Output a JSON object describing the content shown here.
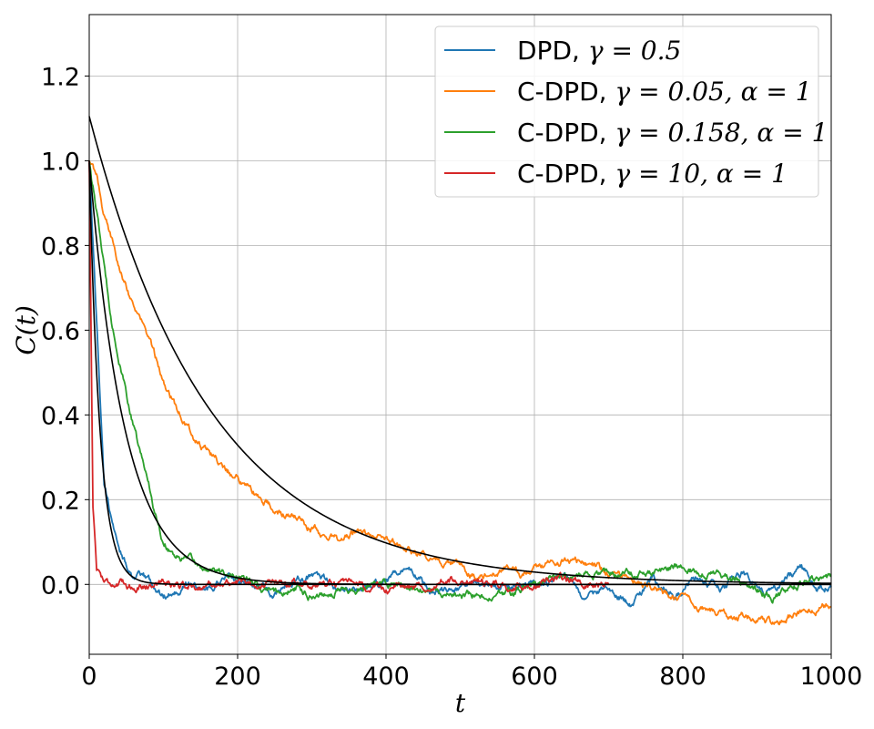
{
  "chart_data": {
    "type": "line",
    "title": "",
    "xlabel": "t",
    "ylabel": "C(t)",
    "xlim": [
      0,
      1000
    ],
    "ylim": [
      -0.165,
      1.345
    ],
    "x_ticks": [
      0,
      200,
      400,
      600,
      800,
      1000
    ],
    "x_tick_labels": [
      "0",
      "200",
      "400",
      "600",
      "800",
      "1000"
    ],
    "y_ticks": [
      0.0,
      0.2,
      0.4,
      0.6,
      0.8,
      1.0,
      1.2
    ],
    "y_tick_labels": [
      "0.0",
      "0.2",
      "0.4",
      "0.6",
      "0.8",
      "1.0",
      "1.2"
    ],
    "grid": true,
    "legend_position": "top-right",
    "series": [
      {
        "name": "DPD, γ = 0.5",
        "legend_prefix": "DPD, ",
        "legend_math": "γ = 0.5",
        "color": "#1f77b4",
        "decay_time": 14,
        "amplitude": 1.0,
        "noise_amplitude": 0.032,
        "seed": 11,
        "x": [
          0,
          20,
          40,
          60,
          80,
          100,
          130,
          160,
          190,
          220,
          250,
          280,
          310,
          340,
          370,
          400,
          430,
          460,
          490,
          520,
          550,
          580,
          610,
          640,
          670,
          700,
          730,
          760,
          790,
          820,
          850,
          880,
          910,
          940,
          960,
          980,
          1000
        ],
        "y": [
          1.0,
          0.24,
          0.07,
          0.02,
          0.01,
          -0.03,
          0.0,
          -0.01,
          0.02,
          0.0,
          -0.02,
          0.01,
          0.02,
          -0.02,
          -0.01,
          0.0,
          0.04,
          -0.01,
          -0.02,
          0.01,
          -0.01,
          0.0,
          -0.01,
          0.03,
          -0.04,
          0.0,
          -0.05,
          0.01,
          -0.03,
          0.02,
          -0.01,
          0.03,
          -0.02,
          0.01,
          0.04,
          -0.01,
          0.0
        ]
      },
      {
        "name": "C-DPD, γ = 0.05, α = 1",
        "legend_prefix": "C-DPD, ",
        "legend_math": "γ = 0.05, α = 1",
        "color": "#ff7f0e",
        "x": [
          0,
          10,
          20,
          40,
          60,
          80,
          100,
          120,
          140,
          160,
          180,
          200,
          220,
          240,
          260,
          280,
          300,
          320,
          340,
          360,
          380,
          400,
          420,
          440,
          460,
          480,
          500,
          520,
          540,
          560,
          580,
          600,
          620,
          640,
          660,
          680,
          700,
          720,
          740,
          760,
          780,
          800,
          820,
          840,
          860,
          880,
          900,
          920,
          940,
          960,
          980,
          1000
        ],
        "y": [
          1.0,
          0.96,
          0.87,
          0.76,
          0.66,
          0.58,
          0.48,
          0.41,
          0.35,
          0.31,
          0.28,
          0.25,
          0.22,
          0.19,
          0.165,
          0.155,
          0.13,
          0.115,
          0.105,
          0.125,
          0.12,
          0.11,
          0.09,
          0.075,
          0.065,
          0.055,
          0.04,
          0.025,
          0.03,
          0.035,
          0.02,
          0.04,
          0.05,
          0.06,
          0.055,
          0.045,
          0.025,
          0.015,
          0.005,
          -0.005,
          -0.02,
          -0.035,
          -0.05,
          -0.06,
          -0.075,
          -0.07,
          -0.08,
          -0.09,
          -0.08,
          -0.065,
          -0.06,
          -0.045
        ]
      },
      {
        "name": "C-DPD, γ = 0.158, α = 1",
        "legend_prefix": "C-DPD, ",
        "legend_math": "γ = 0.158, α = 1",
        "color": "#2ca02c",
        "x": [
          0,
          10,
          20,
          30,
          40,
          50,
          60,
          70,
          80,
          90,
          100,
          120,
          140,
          160,
          180,
          200,
          220,
          240,
          260,
          280,
          300,
          320,
          340,
          360,
          380,
          400,
          420,
          440,
          460,
          480,
          500,
          520,
          540,
          560,
          580,
          600,
          620,
          640,
          660,
          680,
          700,
          720,
          740,
          760,
          780,
          800,
          820,
          840,
          860,
          880,
          900,
          920,
          940,
          960,
          980,
          1000
        ],
        "y": [
          1.0,
          0.88,
          0.75,
          0.63,
          0.53,
          0.45,
          0.37,
          0.3,
          0.24,
          0.16,
          0.1,
          0.065,
          0.05,
          0.035,
          0.025,
          0.02,
          0.0,
          -0.015,
          -0.02,
          -0.01,
          -0.025,
          -0.02,
          -0.01,
          -0.015,
          -0.005,
          0.0,
          0.005,
          0.0,
          -0.01,
          -0.02,
          -0.03,
          -0.025,
          -0.035,
          -0.025,
          -0.01,
          0.0,
          0.01,
          0.015,
          0.02,
          0.025,
          0.02,
          0.025,
          0.03,
          0.03,
          0.04,
          0.045,
          0.03,
          0.025,
          0.02,
          0.0,
          -0.01,
          -0.03,
          -0.02,
          0.0,
          0.01,
          0.02
        ]
      },
      {
        "name": "C-DPD, γ = 10, α = 1",
        "legend_prefix": "C-DPD, ",
        "legend_math": "γ = 10, α = 1",
        "color": "#d62728",
        "decay_time": 3,
        "amplitude": 1.0,
        "noise_amplitude": 0.011,
        "seed": 41,
        "x_end": 700,
        "x": [
          0,
          5,
          10,
          20,
          40,
          60,
          100,
          150,
          200,
          250,
          300,
          350,
          400,
          450,
          500,
          550,
          600,
          650,
          700
        ],
        "y": [
          1.0,
          0.19,
          0.04,
          0.01,
          0.0,
          -0.005,
          0.005,
          -0.005,
          0.005,
          0.0,
          0.005,
          -0.005,
          -0.01,
          0.0,
          0.01,
          0.0,
          -0.005,
          0.01,
          0.0
        ]
      }
    ],
    "fits": [
      {
        "name": "fit-dpd",
        "amplitude": 0.995,
        "decay_time": 14.5,
        "color": "#000000"
      },
      {
        "name": "fit-cdpd-0.05",
        "amplitude": 1.105,
        "decay_time": 165,
        "color": "#000000"
      },
      {
        "name": "fit-cdpd-0.158",
        "amplitude": 1.0,
        "decay_time": 48,
        "color": "#000000"
      }
    ]
  }
}
